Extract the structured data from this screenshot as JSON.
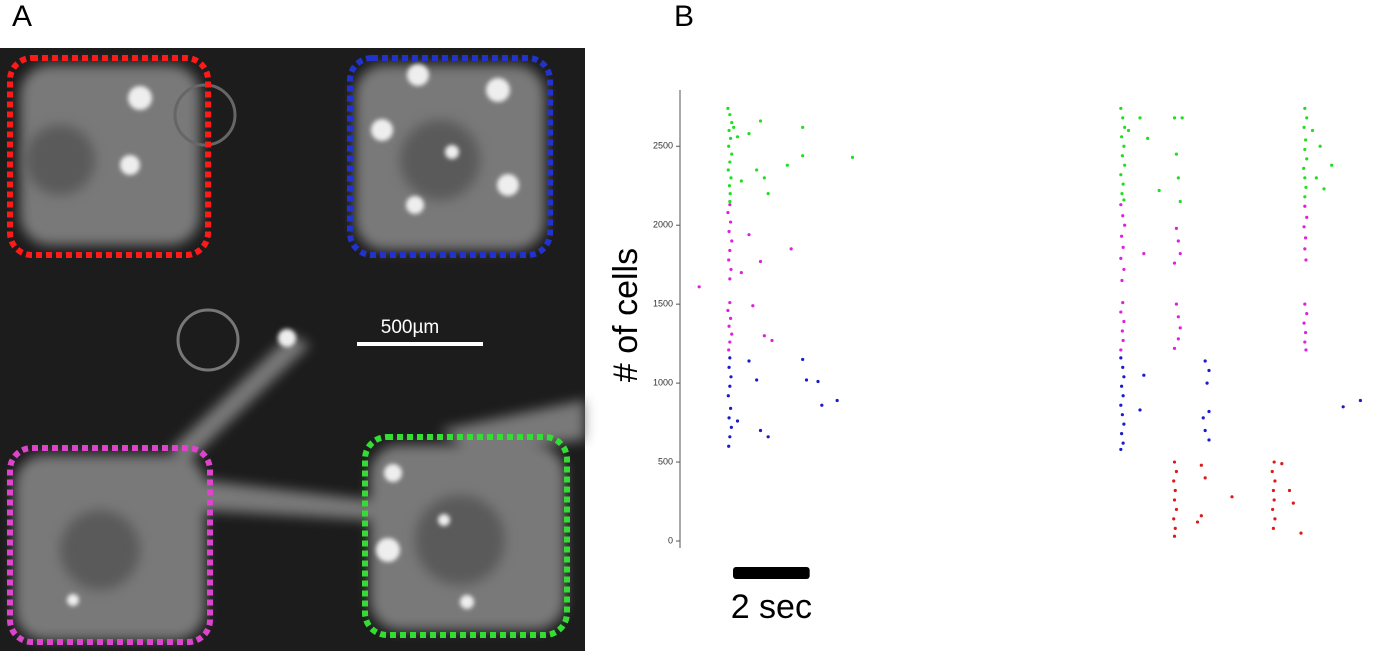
{
  "panel_a": {
    "label": "A",
    "scale_bar_label": "500µm"
  },
  "chart_data": {
    "type": "scatter",
    "panel_label": "B",
    "ylabel": "# of cells",
    "xlim": [
      0,
      18
    ],
    "ylim": [
      0,
      2850
    ],
    "yticks": [
      0,
      500,
      1000,
      1500,
      2000,
      2500
    ],
    "scale_bar": {
      "value": 2,
      "label": "2 sec"
    },
    "series": [
      {
        "color": "#22dd22",
        "x": [
          1.25,
          1.3,
          1.35,
          1.28,
          1.32,
          1.27,
          1.35,
          1.3,
          1.26,
          1.33,
          1.29,
          1.31,
          1.3,
          1.4,
          1.5,
          1.6,
          2.1,
          2.3,
          2.0,
          2.2,
          2.8,
          3.2,
          3.2,
          4.5,
          1.8,
          11.5,
          11.55,
          11.6,
          11.52,
          11.58,
          11.54,
          11.6,
          11.5,
          11.56,
          11.53,
          11.58,
          11.7,
          12.0,
          12.2,
          12.5,
          12.9,
          13.1,
          12.95,
          13.0,
          13.05,
          16.3,
          16.35,
          16.28,
          16.32,
          16.3,
          16.35,
          16.27,
          16.3,
          16.33,
          16.3,
          16.5,
          16.6,
          16.8,
          17.0,
          16.7
        ],
        "values": [
          2740,
          2700,
          2650,
          2600,
          2550,
          2500,
          2450,
          2400,
          2350,
          2300,
          2250,
          2200,
          2150,
          2620,
          2560,
          2280,
          2660,
          2200,
          2350,
          2300,
          2380,
          2440,
          2620,
          2430,
          2580,
          2740,
          2680,
          2620,
          2560,
          2500,
          2440,
          2380,
          2320,
          2260,
          2200,
          2160,
          2600,
          2680,
          2550,
          2220,
          2680,
          2680,
          2450,
          2300,
          2150,
          2740,
          2680,
          2620,
          2540,
          2480,
          2420,
          2360,
          2300,
          2240,
          2180,
          2600,
          2300,
          2230,
          2380,
          2500
        ]
      },
      {
        "color": "#dd22dd",
        "x": [
          1.3,
          1.25,
          1.32,
          1.28,
          1.35,
          1.3,
          1.27,
          1.33,
          1.3,
          1.3,
          1.25,
          1.32,
          1.28,
          1.35,
          1.3,
          1.27,
          0.5,
          1.6,
          2.1,
          2.9,
          1.9,
          2.2,
          2.4,
          1.8,
          11.5,
          11.55,
          11.6,
          11.52,
          11.56,
          11.5,
          11.58,
          11.53,
          11.55,
          11.5,
          11.58,
          11.54,
          11.56,
          11.5,
          12.1,
          12.95,
          13.0,
          13.05,
          12.9,
          12.95,
          13.0,
          13.05,
          13.0,
          12.9,
          16.3,
          16.35,
          16.28,
          16.32,
          16.3,
          16.33,
          16.3,
          16.35,
          16.28,
          16.32,
          16.3,
          16.33
        ],
        "values": [
          2130,
          2080,
          2020,
          1960,
          1900,
          1840,
          1780,
          1720,
          1660,
          1510,
          1460,
          1410,
          1360,
          1310,
          1260,
          1210,
          1610,
          1700,
          1770,
          1850,
          1490,
          1300,
          1270,
          1940,
          2130,
          2060,
          2000,
          1930,
          1860,
          1790,
          1720,
          1650,
          1510,
          1450,
          1390,
          1330,
          1270,
          1210,
          1820,
          1980,
          1900,
          1820,
          1760,
          1500,
          1420,
          1350,
          1280,
          1220,
          2120,
          2050,
          1990,
          1920,
          1850,
          1780,
          1500,
          1440,
          1380,
          1320,
          1260,
          1210
        ]
      },
      {
        "color": "#1a1acc",
        "x": [
          1.3,
          1.28,
          1.33,
          1.3,
          1.26,
          1.32,
          1.28,
          1.34,
          1.3,
          1.27,
          1.8,
          2.0,
          2.1,
          2.3,
          3.2,
          3.3,
          3.6,
          3.7,
          4.1,
          1.5,
          11.5,
          11.55,
          11.58,
          11.52,
          11.56,
          11.5,
          11.54,
          11.58,
          11.52,
          11.56,
          11.5,
          12.1,
          12.0,
          13.7,
          13.8,
          13.75,
          13.8,
          13.65,
          13.7,
          13.8,
          17.3,
          17.75
        ],
        "values": [
          1160,
          1100,
          1040,
          980,
          920,
          840,
          780,
          720,
          660,
          600,
          1140,
          1020,
          700,
          660,
          1150,
          1020,
          1010,
          860,
          890,
          760,
          1160,
          1100,
          1040,
          980,
          920,
          860,
          800,
          740,
          680,
          620,
          580,
          1050,
          830,
          1140,
          1080,
          1000,
          820,
          780,
          700,
          640,
          850,
          890
        ]
      },
      {
        "color": "#dd1a1a",
        "x": [
          12.9,
          12.95,
          12.88,
          12.92,
          12.9,
          12.95,
          12.88,
          12.92,
          12.9,
          13.6,
          13.7,
          13.6,
          13.5,
          14.4,
          15.5,
          15.45,
          15.52,
          15.48,
          15.5,
          15.46,
          15.52,
          15.48,
          15.7,
          15.9,
          16.0,
          16.2
        ],
        "values": [
          500,
          440,
          380,
          320,
          260,
          200,
          140,
          80,
          30,
          480,
          400,
          160,
          120,
          280,
          500,
          440,
          380,
          320,
          260,
          200,
          140,
          80,
          490,
          320,
          240,
          50
        ]
      }
    ]
  }
}
